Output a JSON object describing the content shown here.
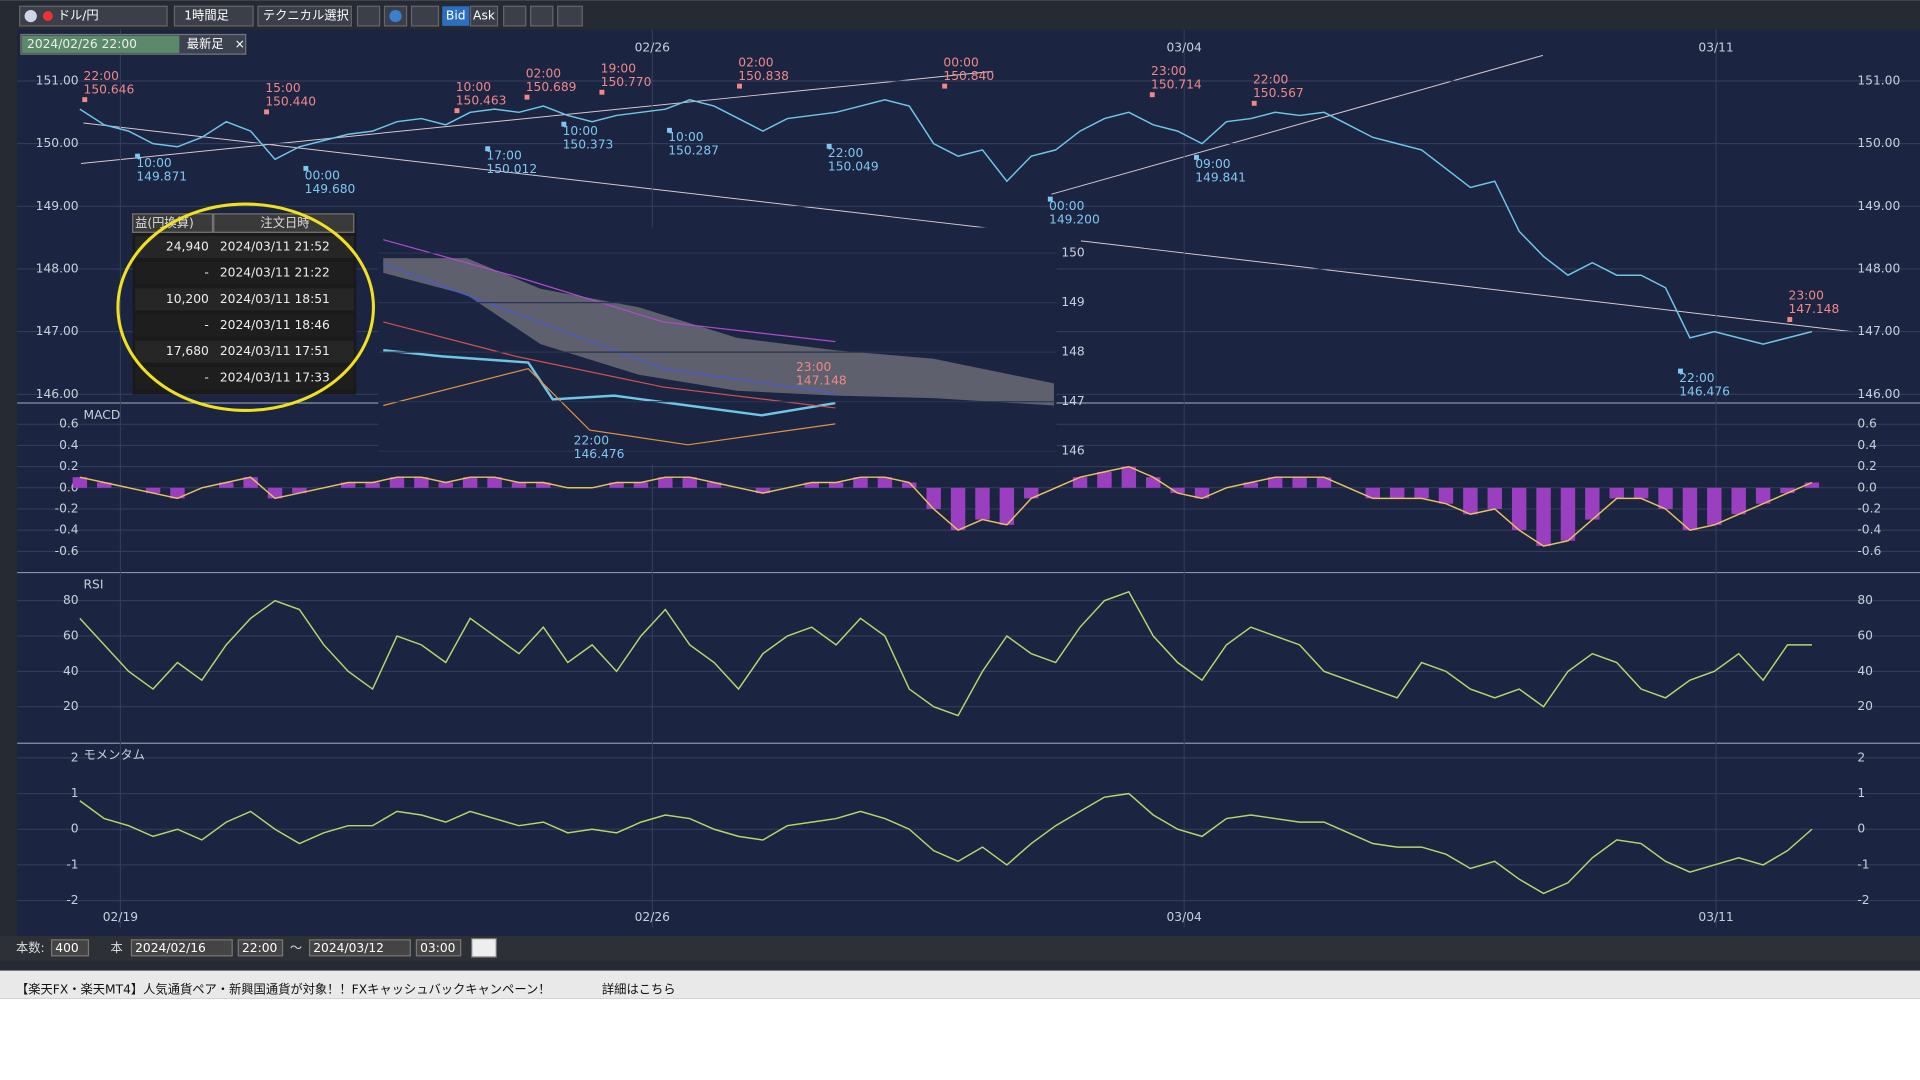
{
  "toolbar": {
    "pair": "ドル/円",
    "timeframe": "1時間足",
    "technical": "テクニカル選択",
    "bid": "Bid",
    "ask": "Ask"
  },
  "cursor_box": {
    "datetime": "2024/02/26 22:00",
    "latest": "最新足",
    "close": "×"
  },
  "dates": [
    "02/19",
    "02/26",
    "03/04",
    "03/11"
  ],
  "annotations": {
    "highs": [
      {
        "time": "22:00",
        "price": "150.646"
      },
      {
        "time": "15:00",
        "price": "150.440"
      },
      {
        "time": "10:00",
        "price": "150.463"
      },
      {
        "time": "02:00",
        "price": "150.689"
      },
      {
        "time": "19:00",
        "price": "150.770"
      },
      {
        "time": "02:00",
        "price": "150.838"
      },
      {
        "time": "00:00",
        "price": "150.840"
      },
      {
        "time": "23:00",
        "price": "150.714"
      },
      {
        "time": "22:00",
        "price": "150.567"
      },
      {
        "time": "23:00",
        "price": "147.148"
      }
    ],
    "lows": [
      {
        "time": "10:00",
        "price": "149.871"
      },
      {
        "time": "00:00",
        "price": "149.680"
      },
      {
        "time": "17:00",
        "price": "150.012"
      },
      {
        "time": "10:00",
        "price": "150.373"
      },
      {
        "time": "10:00",
        "price": "150.287"
      },
      {
        "time": "22:00",
        "price": "150.049"
      },
      {
        "time": "00:00",
        "price": "149.200"
      },
      {
        "time": "09:00",
        "price": "149.841"
      },
      {
        "time": "22:00",
        "price": "146.476"
      }
    ]
  },
  "chart_data": [
    {
      "type": "line",
      "color": "#6ec6e6",
      "ylim": [
        145.86,
        151.82
      ],
      "yticks": [
        {
          "value": 151,
          "label": "151.00"
        },
        {
          "value": 150,
          "label": "150.00"
        },
        {
          "value": 149,
          "label": "149.00"
        },
        {
          "value": 148,
          "label": "148.00"
        },
        {
          "value": 147,
          "label": "147.00"
        },
        {
          "value": 146,
          "label": "146.00"
        }
      ],
      "values": [
        150.55,
        150.3,
        150.2,
        150.0,
        149.95,
        150.1,
        150.35,
        150.2,
        149.75,
        149.95,
        150.05,
        150.15,
        150.2,
        150.35,
        150.4,
        150.3,
        150.5,
        150.55,
        150.5,
        150.6,
        150.45,
        150.35,
        150.45,
        150.5,
        150.55,
        150.7,
        150.6,
        150.4,
        150.2,
        150.4,
        150.45,
        150.5,
        150.6,
        150.7,
        150.6,
        150.0,
        149.8,
        149.9,
        149.4,
        149.8,
        149.9,
        150.2,
        150.4,
        150.5,
        150.3,
        150.2,
        150.0,
        150.35,
        150.4,
        150.5,
        150.45,
        150.5,
        150.3,
        150.1,
        150.0,
        149.9,
        149.6,
        149.3,
        149.4,
        148.6,
        148.2,
        147.9,
        148.1,
        147.9,
        147.9,
        147.7,
        146.9,
        147.0,
        146.9,
        146.8,
        146.9,
        147.0
      ]
    },
    {
      "type": "histogram-line",
      "title": "MACD",
      "color": "#e8c060",
      "bar_color": "#9a3fbf",
      "ylim": [
        -0.8,
        0.8
      ],
      "yticks": [
        0.6,
        0.4,
        0.2,
        {
          "value": 0,
          "label": "0.0"
        },
        -0.2,
        -0.4,
        -0.6
      ],
      "values": [
        0.1,
        0.05,
        0,
        -0.05,
        -0.1,
        0,
        0.05,
        0.1,
        -0.1,
        -0.05,
        0,
        0.05,
        0.05,
        0.1,
        0.1,
        0.05,
        0.1,
        0.1,
        0.05,
        0.05,
        0,
        0,
        0.05,
        0.05,
        0.1,
        0.1,
        0.05,
        0,
        -0.05,
        0,
        0.05,
        0.05,
        0.1,
        0.1,
        0.05,
        -0.2,
        -0.4,
        -0.3,
        -0.35,
        -0.1,
        0,
        0.1,
        0.15,
        0.2,
        0.1,
        -0.05,
        -0.1,
        0,
        0.05,
        0.1,
        0.1,
        0.1,
        0,
        -0.1,
        -0.1,
        -0.1,
        -0.15,
        -0.25,
        -0.2,
        -0.4,
        -0.55,
        -0.5,
        -0.3,
        -0.1,
        -0.1,
        -0.2,
        -0.4,
        -0.35,
        -0.25,
        -0.15,
        -0.05,
        0.05
      ]
    },
    {
      "type": "line",
      "title": "RSI",
      "color": "#b6d66a",
      "ylim": [
        -0.7,
        95.9
      ],
      "yticks": [
        80,
        60,
        40,
        20
      ],
      "values": [
        70,
        55,
        40,
        30,
        45,
        35,
        55,
        70,
        80,
        75,
        55,
        40,
        30,
        60,
        55,
        45,
        70,
        60,
        50,
        65,
        45,
        55,
        40,
        60,
        75,
        55,
        45,
        30,
        50,
        60,
        65,
        55,
        70,
        60,
        30,
        20,
        15,
        40,
        60,
        50,
        45,
        65,
        80,
        85,
        60,
        45,
        35,
        55,
        65,
        60,
        55,
        40,
        35,
        30,
        25,
        45,
        40,
        30,
        25,
        30,
        20,
        40,
        50,
        45,
        30,
        25,
        35,
        40,
        50,
        35,
        55,
        55
      ]
    },
    {
      "type": "line",
      "title": "モメンタム",
      "color": "#b6d66a",
      "ylim": [
        -2.24,
        2.41
      ],
      "yticks": [
        2,
        1,
        0,
        -1,
        -2
      ],
      "values": [
        0.8,
        0.3,
        0.1,
        -0.2,
        0,
        -0.3,
        0.2,
        0.5,
        0,
        -0.4,
        -0.1,
        0.1,
        0.1,
        0.5,
        0.4,
        0.2,
        0.5,
        0.3,
        0.1,
        0.2,
        -0.1,
        0,
        -0.1,
        0.2,
        0.4,
        0.3,
        0,
        -0.2,
        -0.3,
        0.1,
        0.2,
        0.3,
        0.5,
        0.3,
        0,
        -0.6,
        -0.9,
        -0.5,
        -1.0,
        -0.4,
        0.1,
        0.5,
        0.9,
        1.0,
        0.4,
        0,
        -0.2,
        0.3,
        0.4,
        0.3,
        0.2,
        0.2,
        -0.1,
        -0.4,
        -0.5,
        -0.5,
        -0.7,
        -1.1,
        -0.9,
        -1.4,
        -1.8,
        -1.5,
        -0.8,
        -0.3,
        -0.4,
        -0.9,
        -1.2,
        -1.0,
        -0.8,
        -1.0,
        -0.6,
        0.0
      ]
    }
  ],
  "inset_table": {
    "headers": [
      "益(円換算)",
      "注文日時"
    ],
    "rows": [
      [
        "24,940",
        "2024/03/11 21:52"
      ],
      [
        "-",
        "2024/03/11 21:22"
      ],
      [
        "10,200",
        "2024/03/11 18:51"
      ],
      [
        "-",
        "2024/03/11 18:46"
      ],
      [
        "17,680",
        "2024/03/11 17:51"
      ],
      [
        "-",
        "2024/03/11 17:33"
      ]
    ]
  },
  "inset_chart": {
    "yticks": [
      150,
      149,
      148,
      147,
      146
    ],
    "high": {
      "time": "23:00",
      "price": "147.148"
    },
    "low": {
      "time": "22:00",
      "price": "146.476"
    }
  },
  "footer": {
    "count_label": "本数:",
    "count": "400",
    "unit": "本",
    "from_date": "2024/02/16",
    "from_time": "22:00",
    "tilde": "～",
    "to_date": "2024/03/12",
    "to_time": "03:00"
  },
  "banner": "【楽天FX・楽天MT4】人気通貨ペア・新興国通貨が対象！！FXキャッシュバックキャンペーン！",
  "banner_link": "詳細はこちら"
}
